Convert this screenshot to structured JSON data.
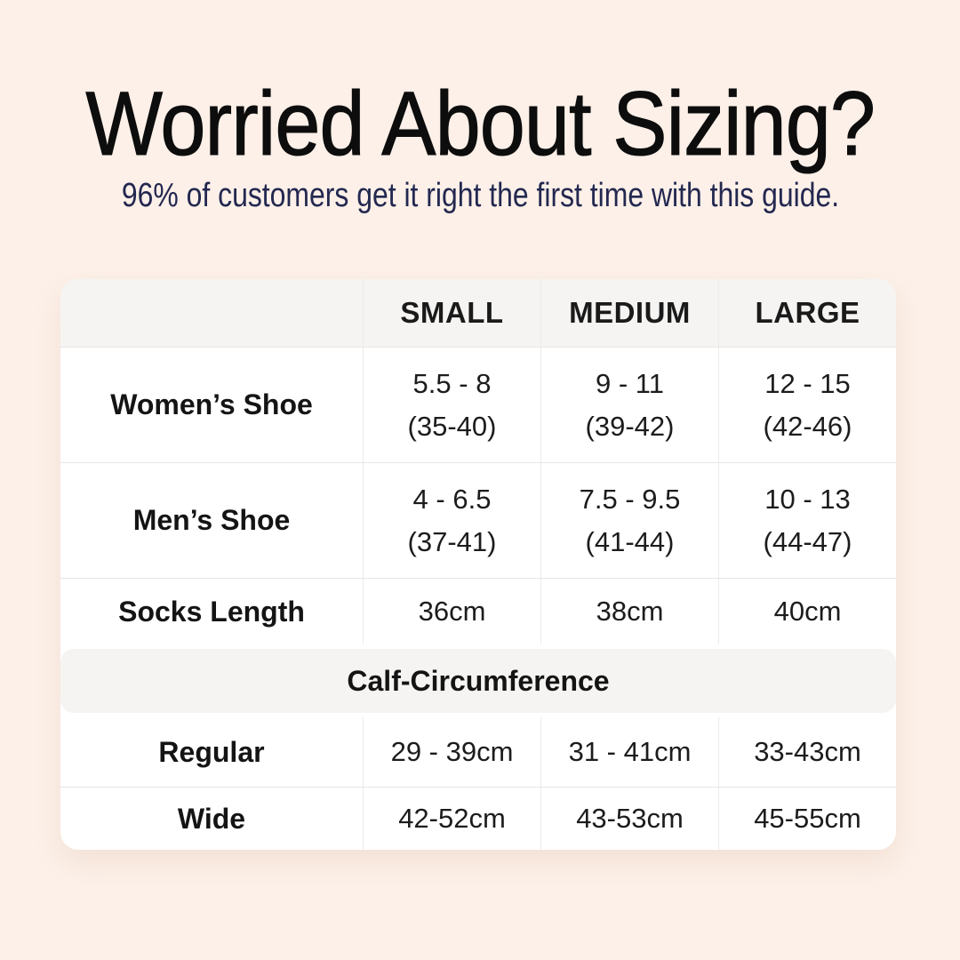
{
  "header": {
    "title": "Worried About Sizing?",
    "subtitle": "96% of customers get it right the first time with this guide."
  },
  "table": {
    "columns": [
      "SMALL",
      "MEDIUM",
      "LARGE"
    ],
    "rows": [
      {
        "label": "Women’s Shoe",
        "cells": [
          {
            "line1": "5.5 - 8",
            "line2": "(35-40)"
          },
          {
            "line1": "9 - 11",
            "line2": "(39-42)"
          },
          {
            "line1": "12 - 15",
            "line2": "(42-46)"
          }
        ]
      },
      {
        "label": "Men’s Shoe",
        "cells": [
          {
            "line1": "4 - 6.5",
            "line2": "(37-41)"
          },
          {
            "line1": "7.5 - 9.5",
            "line2": "(41-44)"
          },
          {
            "line1": "10 - 13",
            "line2": "(44-47)"
          }
        ]
      },
      {
        "label": "Socks Length",
        "cells": [
          {
            "line1": "36cm"
          },
          {
            "line1": "38cm"
          },
          {
            "line1": "40cm"
          }
        ]
      }
    ],
    "section_header": "Calf-Circumference",
    "section_rows": [
      {
        "label": "Regular",
        "cells": [
          "29 - 39cm",
          "31 - 41cm",
          "33-43cm"
        ]
      },
      {
        "label": "Wide",
        "cells": [
          "42-52cm",
          "43-53cm",
          "45-55cm"
        ]
      }
    ]
  },
  "colors": {
    "page_bg": "#fcf0e8",
    "card_bg": "#ffffff",
    "band_bg": "#f5f4f2",
    "title_text": "#0d0d0d",
    "subtitle_text": "#232850",
    "divider": "#e8e6e3"
  },
  "chart_data": {
    "type": "table",
    "title": "Worried About Sizing?",
    "subtitle": "96% of customers get it right the first time with this guide.",
    "columns": [
      "",
      "SMALL",
      "MEDIUM",
      "LARGE"
    ],
    "rows": [
      [
        "Women’s Shoe",
        "5.5 - 8 (35-40)",
        "9 - 11 (39-42)",
        "12 - 15 (42-46)"
      ],
      [
        "Men’s Shoe",
        "4 - 6.5 (37-41)",
        "7.5 - 9.5 (41-44)",
        "10 - 13 (44-47)"
      ],
      [
        "Socks Length",
        "36cm",
        "38cm",
        "40cm"
      ],
      [
        "Calf-Circumference",
        "",
        "",
        ""
      ],
      [
        "Regular",
        "29 - 39cm",
        "31 - 41cm",
        "33-43cm"
      ],
      [
        "Wide",
        "42-52cm",
        "43-53cm",
        "45-55cm"
      ]
    ],
    "layout_hints": {
      "section_header_row_index": 3,
      "section_header_spans_all_columns": true,
      "header_row_background": "#f5f4f2",
      "card_corner_radius_px": 20
    }
  }
}
